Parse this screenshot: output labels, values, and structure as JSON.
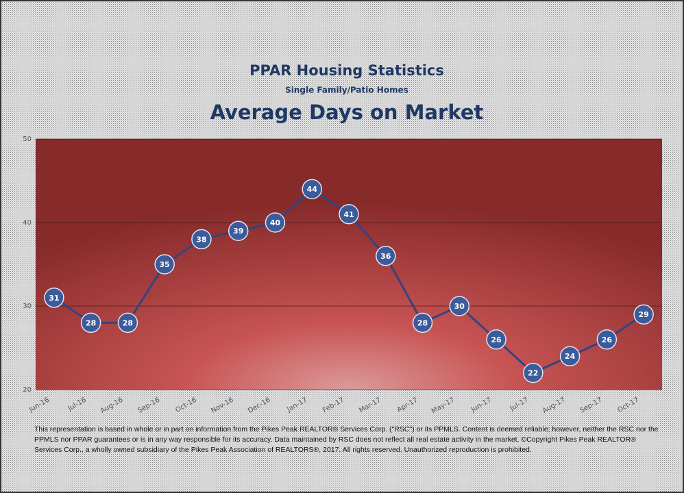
{
  "chart_data": {
    "type": "line",
    "title": "PPAR Housing Statistics",
    "subtitle": "Single Family/Patio Homes",
    "chart_title": "Average Days on Market",
    "categories": [
      "Jun-16",
      "Jul-16",
      "Aug-16",
      "Sep-16",
      "Oct-16",
      "Nov-16",
      "Dec-16",
      "Jan-17",
      "Feb-17",
      "Mar-17",
      "Apr-17",
      "May-17",
      "Jun-17",
      "Jul-17",
      "Aug-17",
      "Sep-17",
      "Oct-17"
    ],
    "values": [
      31,
      28,
      28,
      35,
      38,
      39,
      40,
      44,
      41,
      36,
      28,
      30,
      26,
      22,
      24,
      26,
      29
    ],
    "color": "#34447e",
    "marker_color": "#3b5b9b",
    "ylim": [
      20,
      50
    ],
    "yticks": [
      20,
      30,
      40,
      50
    ],
    "grid": true,
    "footnote": "This representation is based in whole or in part on information from the Pikes Peak REALTOR® Services Corp. (\"RSC\") or its PPMLS. Content is deemed reliable; however, neither the RSC nor the PPMLS nor PPAR guarantees or is in any way responsible for its accuracy. Data maintained by RSC does not reflect all real estate activity in the market. ©Copyright Pikes Peak REALTOR® Services Corp., a wholly owned subsidiary of the Pikes Peak Association of REALTORS®, 2017. All rights reserved. Unauthorized reproduction is prohibited."
  }
}
